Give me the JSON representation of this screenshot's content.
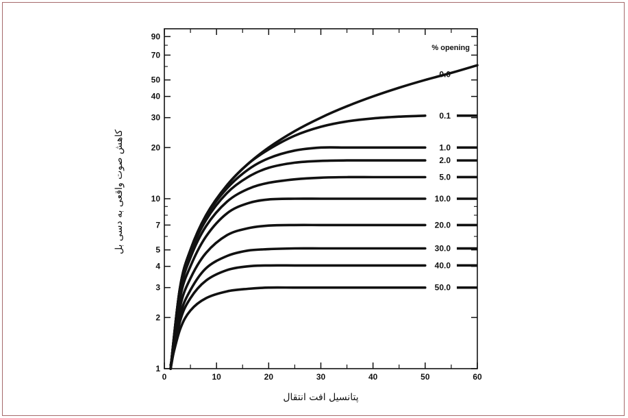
{
  "chart_data": {
    "type": "line",
    "xlabel": "پتانسیل افت انتقال",
    "ylabel": "کاهش صوت واقعی به دسی بل",
    "legend_title": "% opening",
    "xlim": [
      0,
      60
    ],
    "ylim": [
      1,
      100
    ],
    "yscale": "log",
    "grid": false,
    "x_ticks": [
      "0",
      "10",
      "20",
      "30",
      "40",
      "50",
      "60"
    ],
    "y_ticks": [
      "1",
      "2",
      "3",
      "4",
      "5",
      "7",
      "10",
      "20",
      "30",
      "40",
      "50",
      "70",
      "90"
    ],
    "series": [
      {
        "name": "0.0",
        "x": [
          1.2,
          3,
          5,
          8,
          12,
          16,
          20,
          25,
          30,
          35,
          40,
          45,
          50,
          55,
          60
        ],
        "y": [
          1,
          3,
          5,
          8,
          12,
          16,
          20,
          25,
          30,
          35,
          40,
          45,
          50,
          55,
          61
        ]
      },
      {
        "name": "0.1",
        "x": [
          1.2,
          3,
          5,
          8,
          12,
          16,
          20,
          25,
          30,
          35,
          40,
          45,
          50
        ],
        "y": [
          1,
          3,
          5,
          8,
          12,
          16,
          19.5,
          23.5,
          26.5,
          28.5,
          29.7,
          30.4,
          30.8
        ]
      },
      {
        "name": "1.0",
        "x": [
          1.2,
          3,
          5,
          8,
          12,
          16,
          20,
          25,
          30,
          35,
          40,
          45,
          50
        ],
        "y": [
          1,
          3,
          5,
          7.9,
          11.5,
          14.8,
          17.3,
          19.2,
          20,
          20,
          20,
          20,
          20
        ]
      },
      {
        "name": "2.0",
        "x": [
          1.2,
          3,
          5,
          8,
          12,
          16,
          20,
          25,
          30,
          35,
          40,
          45,
          50
        ],
        "y": [
          1,
          2.9,
          4.8,
          7.5,
          10.8,
          13.4,
          15.2,
          16.3,
          16.7,
          16.8,
          16.8,
          16.8,
          16.8
        ]
      },
      {
        "name": "5.0",
        "x": [
          1.2,
          3,
          5,
          8,
          12,
          16,
          20,
          25,
          30,
          35,
          40,
          45,
          50
        ],
        "y": [
          1,
          2.8,
          4.5,
          6.9,
          9.6,
          11.4,
          12.4,
          13,
          13.3,
          13.4,
          13.4,
          13.4,
          13.4
        ]
      },
      {
        "name": "10.0",
        "x": [
          1.2,
          3,
          5,
          8,
          12,
          16,
          20,
          25,
          30,
          35,
          40,
          45,
          50
        ],
        "y": [
          1,
          2.6,
          4,
          6,
          8.2,
          9.4,
          9.9,
          10,
          10,
          10,
          10,
          10,
          10
        ]
      },
      {
        "name": "20.0",
        "x": [
          1.2,
          3,
          5,
          8,
          12,
          16,
          20,
          25,
          30,
          35,
          40,
          45,
          50
        ],
        "y": [
          1,
          2.3,
          3.4,
          4.8,
          6.1,
          6.7,
          6.95,
          7,
          7,
          7,
          7,
          7,
          7
        ]
      },
      {
        "name": "30.0",
        "x": [
          1.2,
          3,
          5,
          8,
          12,
          16,
          20,
          25,
          30,
          35,
          40,
          45,
          50
        ],
        "y": [
          1,
          2.05,
          2.9,
          3.9,
          4.6,
          4.95,
          5.05,
          5.1,
          5.1,
          5.1,
          5.1,
          5.1,
          5.1
        ]
      },
      {
        "name": "40.0",
        "x": [
          1.2,
          3,
          5,
          8,
          12,
          16,
          20,
          25,
          30,
          35,
          40,
          45,
          50
        ],
        "y": [
          1,
          1.9,
          2.6,
          3.3,
          3.8,
          4,
          4.05,
          4.05,
          4.05,
          4.05,
          4.05,
          4.05,
          4.05
        ]
      },
      {
        "name": "50.0",
        "x": [
          1.2,
          3,
          5,
          8,
          12,
          16,
          20,
          25,
          30,
          35,
          40,
          45,
          50
        ],
        "y": [
          1.05,
          1.7,
          2.2,
          2.6,
          2.85,
          2.95,
          3,
          3,
          3,
          3,
          3,
          3,
          3
        ]
      }
    ]
  }
}
